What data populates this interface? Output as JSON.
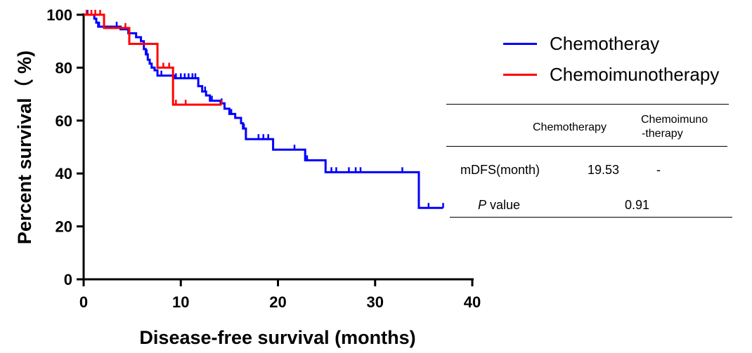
{
  "chart_data": {
    "type": "line",
    "subtype": "kaplan-meier",
    "title": "",
    "xlabel": "Disease-free survival (months)",
    "ylabel": "Percent survival（ %)",
    "xlim": [
      0,
      40
    ],
    "ylim": [
      0,
      100
    ],
    "xticks": [
      0,
      10,
      20,
      30,
      40
    ],
    "yticks": [
      0,
      20,
      40,
      60,
      80,
      100
    ],
    "grid": false,
    "legend_position": "top-right",
    "series": [
      {
        "name": "Chemotheray",
        "color": "#0000ff",
        "steps": [
          [
            0,
            100
          ],
          [
            1.1,
            98.5
          ],
          [
            1.3,
            97
          ],
          [
            1.5,
            95.5
          ],
          [
            3.8,
            94.5
          ],
          [
            4.6,
            93
          ],
          [
            5.4,
            91.5
          ],
          [
            5.9,
            90
          ],
          [
            6.2,
            87
          ],
          [
            6.4,
            85
          ],
          [
            6.6,
            83
          ],
          [
            6.8,
            81.5
          ],
          [
            7.0,
            80
          ],
          [
            7.3,
            79
          ],
          [
            7.6,
            77
          ],
          [
            9.3,
            76
          ],
          [
            11.8,
            73
          ],
          [
            12.2,
            71
          ],
          [
            12.6,
            69.5
          ],
          [
            13.0,
            67.5
          ],
          [
            14.1,
            66.5
          ],
          [
            14.5,
            64.5
          ],
          [
            15.0,
            62.5
          ],
          [
            15.6,
            61
          ],
          [
            16.2,
            59
          ],
          [
            16.4,
            57
          ],
          [
            16.7,
            53
          ],
          [
            19.5,
            49
          ],
          [
            22.8,
            45
          ],
          [
            24.9,
            40.5
          ],
          [
            34.5,
            27
          ],
          [
            37.0,
            27
          ]
        ],
        "censor_x": [
          0.4,
          1.6,
          3.4,
          5.9,
          6.5,
          7.0,
          8.0,
          9.5,
          10.0,
          10.4,
          10.8,
          11.2,
          11.5,
          11.8,
          12.5,
          13.2,
          14.2,
          15.2,
          16.5,
          18.0,
          18.5,
          19.0,
          21.7,
          23.0,
          25.5,
          26.0,
          27.3,
          28.0,
          28.5,
          32.8,
          35.5,
          37.0
        ]
      },
      {
        "name": "Chemoimunotherapy",
        "color": "#ff0000",
        "steps": [
          [
            0,
            100
          ],
          [
            2.1,
            95
          ],
          [
            4.7,
            89
          ],
          [
            7.6,
            80
          ],
          [
            9.2,
            66
          ],
          [
            14.2,
            66
          ]
        ],
        "censor_x": [
          0.3,
          0.8,
          1.2,
          1.7,
          4.3,
          8.2,
          8.8,
          9.5,
          10.5,
          14.2
        ]
      }
    ]
  },
  "stats_table": {
    "col_headers": [
      "Chemotherapy",
      "Chemoimuno",
      "-therapy"
    ],
    "row1": {
      "label": "mDFS(month)",
      "chemo": "19.53",
      "chemoimmuno": "-"
    },
    "row2": {
      "label_p": "P",
      "label_rest": " value",
      "value": "0.91"
    }
  }
}
